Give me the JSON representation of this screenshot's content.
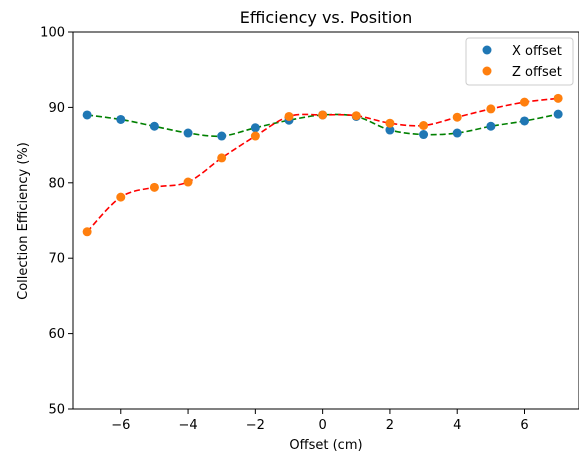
{
  "chart_data": {
    "type": "scatter",
    "title": "Efficiency vs. Position",
    "xlabel": "Offset (cm)",
    "ylabel": "Collection Efficiency (%)",
    "xlim": [
      -7.42,
      7.62
    ],
    "ylim": [
      50,
      100
    ],
    "xticks": [
      -6,
      -4,
      -2,
      0,
      2,
      4,
      6
    ],
    "xtick_labels": [
      "−6",
      "−4",
      "−2",
      "0",
      "2",
      "4",
      "6"
    ],
    "yticks": [
      50,
      60,
      70,
      80,
      90,
      100
    ],
    "ytick_labels": [
      "50",
      "60",
      "70",
      "80",
      "90",
      "100"
    ],
    "grid": false,
    "legend_position": "top-right",
    "x": [
      -7,
      -6,
      -5,
      -4,
      -3,
      -2,
      -1,
      0,
      1,
      2,
      3,
      4,
      5,
      6,
      7
    ],
    "series": [
      {
        "name": "X offset",
        "color": "#1f77b4",
        "fit_color": "#008000",
        "values": [
          89.0,
          88.4,
          87.5,
          86.6,
          86.2,
          87.3,
          88.3,
          89.0,
          88.8,
          87.0,
          86.4,
          86.6,
          87.5,
          88.2,
          89.1
        ]
      },
      {
        "name": "Z offset",
        "color": "#ff7f0e",
        "fit_color": "#ff0000",
        "values": [
          73.5,
          78.1,
          79.4,
          80.1,
          83.3,
          86.2,
          88.8,
          89.0,
          88.9,
          87.9,
          87.6,
          88.7,
          89.8,
          90.7,
          91.2
        ]
      }
    ]
  }
}
